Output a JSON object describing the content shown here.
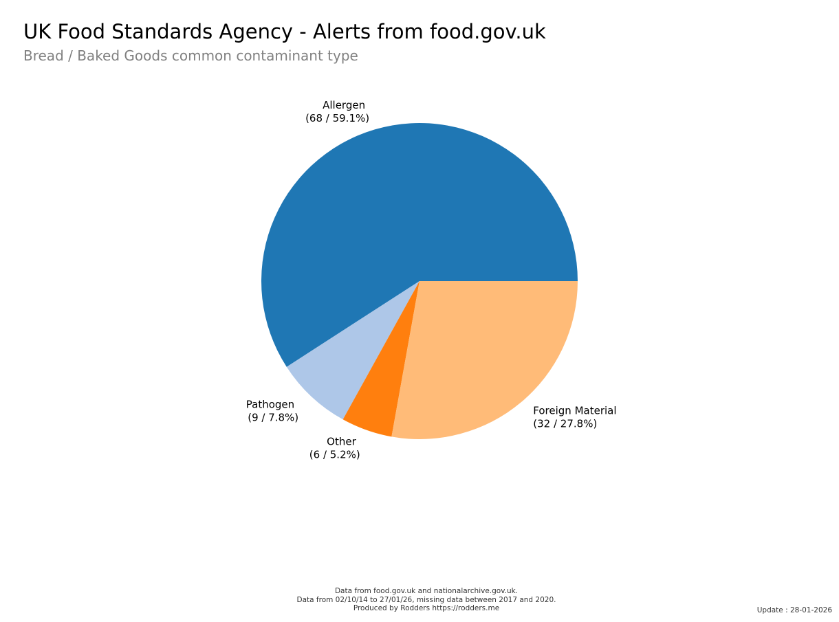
{
  "header": {
    "title": "UK Food Standards Agency - Alerts from food.gov.uk",
    "subtitle": "Bread / Baked Goods common contaminant type"
  },
  "chart_data": {
    "type": "pie",
    "title": "UK Food Standards Agency - Alerts from food.gov.uk",
    "subtitle": "Bread / Baked Goods common contaminant type",
    "start_angle_deg": 0,
    "direction": "counterclockwise",
    "slices": [
      {
        "name": "Allergen",
        "value": 68,
        "percent": "59.1%",
        "color": "#1f77b4"
      },
      {
        "name": "Pathogen",
        "value": 9,
        "percent": "7.8%",
        "color": "#aec7e8"
      },
      {
        "name": "Other",
        "value": 6,
        "percent": "5.2%",
        "color": "#ff7f0e"
      },
      {
        "name": "Foreign Material",
        "value": 32,
        "percent": "27.8%",
        "color": "#ffbb78"
      }
    ]
  },
  "footer": {
    "line1": "Data from food.gov.uk and nationalarchive.gov.uk.",
    "line2": "Data from 02/10/14 to 27/01/26, missing data between 2017 and 2020.",
    "line3": "Produced by Rodders https://rodders.me",
    "update": "Update : 28-01-2026"
  }
}
